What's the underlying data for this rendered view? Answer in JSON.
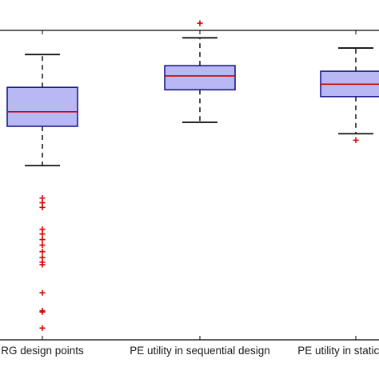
{
  "chart_data": {
    "type": "boxplot",
    "title": "",
    "xlabel": "",
    "ylabel": "",
    "ylim": [
      0,
      100
    ],
    "grid": false,
    "legend": "none",
    "categories": [
      "RG design points",
      "PE utility in sequential design",
      "PE utility in static design"
    ],
    "boxes": [
      {
        "category": "RG design points",
        "whisker_low": 56.3,
        "q1": 69.0,
        "median": 73.7,
        "q3": 81.6,
        "whisker_high": 92.2,
        "outliers": [
          45.8,
          44.3,
          42.8,
          35.7,
          34.2,
          32.4,
          30.6,
          28.5,
          26.6,
          25.1,
          24.3,
          15.2,
          9.4,
          9.0,
          3.8
        ]
      },
      {
        "category": "PE utility in sequential design",
        "whisker_low": 70.3,
        "q1": 80.8,
        "median": 85.3,
        "q3": 88.6,
        "whisker_high": 97.6,
        "outliers": [
          102.3
        ]
      },
      {
        "category": "PE utility in static design",
        "whisker_low": 66.6,
        "q1": 78.6,
        "median": 82.6,
        "q3": 86.8,
        "whisker_high": 94.3,
        "outliers": [
          64.5
        ]
      }
    ],
    "colors": {
      "box_fill": "#b8b8f5",
      "box_edge": "#1a1a8c",
      "median": "#cc0000",
      "whisker": "#111111",
      "outlier": "#dd0000",
      "axes": "#000000"
    }
  }
}
